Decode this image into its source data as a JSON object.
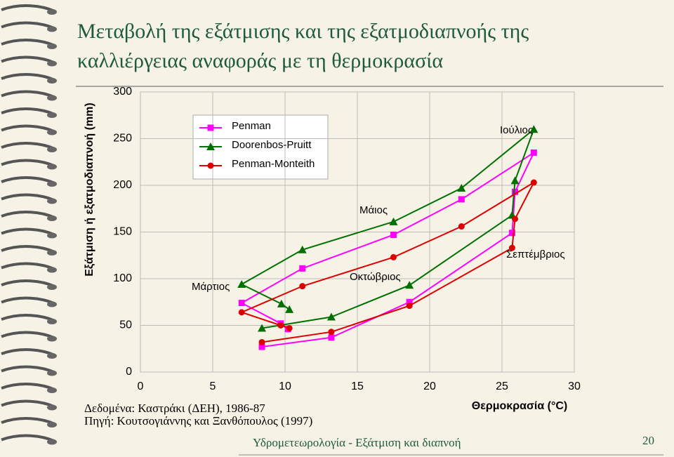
{
  "title": "Μεταβολή της εξάτμισης και της εξατμοδιαπνοής της καλλιέργειας αναφοράς με τη θερμοκρασία",
  "footer": "Υδρομετεωρολογία - Εξάτμιση και διαπνοή",
  "page_number": "20",
  "notes": [
    "Δεδομένα: Καστράκι (ΔΕΗ), 1986-87",
    "Πηγή: Κουτσογιάννης και Ξανθόπουλος (1997)"
  ],
  "chart_data": {
    "type": "line",
    "x_label": "Θερμοκρασία (°C)",
    "y_label": "Εξάτμιση ή εξατμοδιαπνοή (mm)",
    "xlim": [
      0,
      30
    ],
    "xticks": [
      0,
      5,
      10,
      15,
      20,
      25,
      30
    ],
    "ylim": [
      0,
      300
    ],
    "yticks": [
      0,
      50,
      100,
      150,
      200,
      250,
      300
    ],
    "grid": true,
    "series": [
      {
        "name": "Penman",
        "color": "#ff00ff",
        "marker": "square",
        "x": [
          8.4,
          13.2,
          18.6,
          25.7,
          25.9,
          27.2,
          22.2,
          17.5,
          11.2,
          7.0,
          9.7,
          10.2
        ],
        "values": [
          27,
          37,
          75,
          149,
          193,
          235,
          185,
          147,
          111,
          74,
          52,
          46
        ]
      },
      {
        "name": "Doorenbos-Pruitt",
        "color": "#007000",
        "marker": "triangle",
        "x": [
          8.4,
          13.2,
          18.6,
          25.7,
          25.9,
          27.2,
          22.2,
          17.5,
          11.2,
          7.0,
          9.75,
          10.3
        ],
        "values": [
          47,
          59,
          93,
          168,
          205,
          260,
          197,
          161,
          131,
          94,
          73,
          67
        ]
      },
      {
        "name": "Penman-Monteith",
        "color": "#dd0000",
        "marker": "circle",
        "x": [
          8.4,
          13.2,
          18.6,
          25.7,
          25.9,
          27.2,
          22.2,
          17.5,
          11.2,
          7.0,
          9.7,
          10.3
        ],
        "values": [
          32,
          43,
          71,
          133,
          164,
          203,
          156,
          123,
          92,
          64,
          50,
          47
        ]
      }
    ],
    "annotations": [
      "Μάρτιος",
      "Μάιος",
      "Οκτώβριος",
      "Ιούλιος",
      "Σεπτέμβριος"
    ]
  }
}
